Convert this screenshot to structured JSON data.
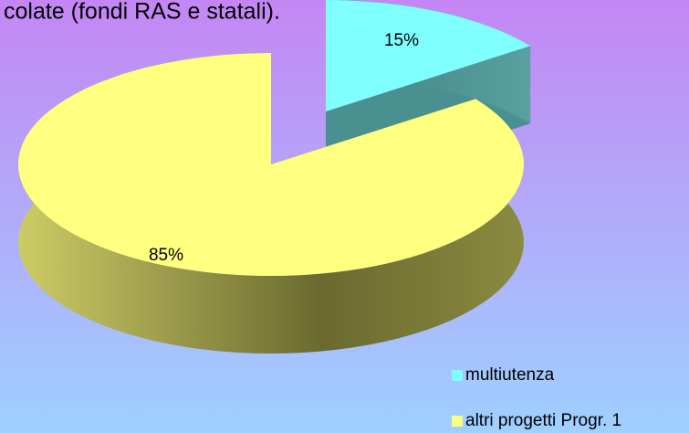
{
  "chart_data": {
    "type": "pie",
    "title": "colate (fondi RAS e statali).",
    "categories": [
      "multiutenza",
      "altri progetti Progr. 1"
    ],
    "values": [
      15,
      85
    ],
    "value_labels": [
      "15%",
      "85%"
    ],
    "colors": [
      "#80ffff",
      "#ffff80"
    ],
    "legend": "bottom-right"
  }
}
